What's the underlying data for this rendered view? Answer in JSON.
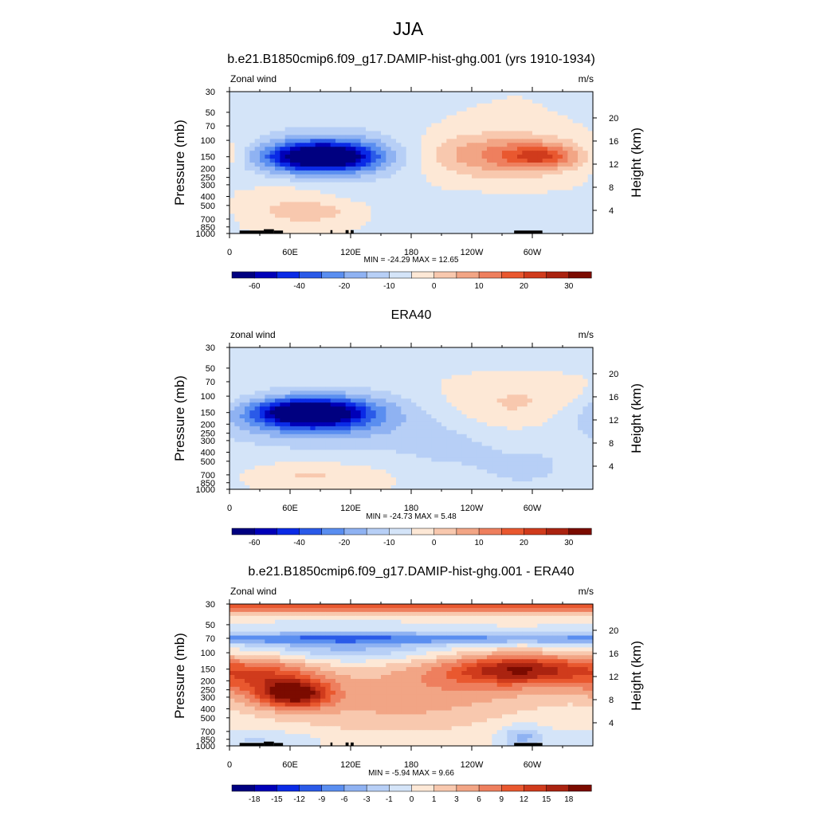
{
  "page": {
    "title": "JJA"
  },
  "colors": {
    "spread": [
      "#000080",
      "#0000b8",
      "#0a2ae6",
      "#2a5ae8",
      "#5a8ef0",
      "#8fb2f2",
      "#b7cff6",
      "#d4e4f8",
      "#fde8d6",
      "#f8c8ae",
      "#f2a585",
      "#ee7f5e",
      "#e9582f",
      "#d03b1c",
      "#aa2310",
      "#7b0b00"
    ],
    "land": "#000000"
  },
  "chart_data": [
    {
      "type": "heatmap",
      "title": "b.e21.B1850cmip6.f09_g17.DAMIP-hist-ghg.001 (yrs 1910-1934)",
      "left_label": "Zonal wind",
      "right_label": "m/s",
      "ylabel": "Pressure (mb)",
      "ylabel_right": "Height (km)",
      "pressure_ticks": [
        "30",
        "50",
        "70",
        "100",
        "150",
        "200",
        "250",
        "300",
        "400",
        "500",
        "700",
        "850",
        "1000"
      ],
      "height_ticks": [
        "20",
        "16",
        "12",
        "8",
        "4"
      ],
      "x_ticks": [
        "0",
        "60E",
        "120E",
        "180",
        "120W",
        "60W"
      ],
      "stats": "MIN = -24.29  MAX =  12.65",
      "colorbar_labels": [
        "-60",
        "-40",
        "-20",
        "-10",
        "0",
        "10",
        "20",
        "30"
      ],
      "xlim": [
        0,
        360
      ],
      "ylim_mb": [
        1000,
        30
      ],
      "min": -24.29,
      "max": 12.65,
      "field": [
        {
          "lon": 90,
          "p": 150,
          "value": -24,
          "sx": 35,
          "sy": 0.22
        },
        {
          "lon": 90,
          "p": 150,
          "value": -14,
          "sx": 55,
          "sy": 0.35
        },
        {
          "lon": 105,
          "p": 140,
          "value": -6,
          "sx": 80,
          "sy": 0.55
        },
        {
          "lon": 310,
          "p": 150,
          "value": 12.6,
          "sx": 25,
          "sy": 0.2
        },
        {
          "lon": 280,
          "p": 140,
          "value": 9,
          "sx": 70,
          "sy": 0.35
        },
        {
          "lon": 250,
          "p": 150,
          "value": 5,
          "sx": 60,
          "sy": 0.45
        },
        {
          "lon": 80,
          "p": 600,
          "value": 6,
          "sx": 35,
          "sy": 0.2
        },
        {
          "lon": 60,
          "p": 400,
          "value": 3,
          "sx": 30,
          "sy": 0.35
        },
        {
          "lon": 240,
          "p": 600,
          "value": -3,
          "sx": 70,
          "sy": 0.3
        },
        {
          "lon": 20,
          "p": 150,
          "value": 1.5,
          "sx": 30,
          "sy": 0.4
        }
      ],
      "land": [
        [
          10,
          30,
          930
        ],
        [
          30,
          34,
          930
        ],
        [
          34,
          44,
          900
        ],
        [
          44,
          53,
          930
        ],
        [
          100,
          102,
          920
        ],
        [
          115,
          118,
          920
        ],
        [
          120,
          123,
          920
        ],
        [
          282,
          310,
          930
        ]
      ]
    },
    {
      "type": "heatmap",
      "title": "ERA40",
      "left_label": "zonal wind",
      "right_label": "m/s",
      "ylabel": "Pressure (mb)",
      "ylabel_right": "Height (km)",
      "pressure_ticks": [
        "30",
        "50",
        "70",
        "100",
        "150",
        "200",
        "250",
        "300",
        "400",
        "500",
        "700",
        "850",
        "1000"
      ],
      "height_ticks": [
        "20",
        "16",
        "12",
        "8",
        "4"
      ],
      "x_ticks": [
        "0",
        "60E",
        "120E",
        "180",
        "120W",
        "60W"
      ],
      "stats": "MIN = -24.73  MAX =   5.48",
      "colorbar_labels": [
        "-60",
        "-40",
        "-20",
        "-10",
        "0",
        "10",
        "20",
        "30"
      ],
      "xlim": [
        0,
        360
      ],
      "ylim_mb": [
        1000,
        30
      ],
      "min": -24.73,
      "max": 5.48,
      "field": [
        {
          "lon": 80,
          "p": 150,
          "value": -24,
          "sx": 35,
          "sy": 0.22
        },
        {
          "lon": 80,
          "p": 160,
          "value": -14,
          "sx": 55,
          "sy": 0.35
        },
        {
          "lon": 100,
          "p": 180,
          "value": -7,
          "sx": 85,
          "sy": 0.6
        },
        {
          "lon": 180,
          "p": 35,
          "value": -4,
          "sx": 400,
          "sy": 0.22
        },
        {
          "lon": 210,
          "p": 350,
          "value": -4,
          "sx": 35,
          "sy": 0.35
        },
        {
          "lon": 290,
          "p": 600,
          "value": -5,
          "sx": 45,
          "sy": 0.45
        },
        {
          "lon": 290,
          "p": 120,
          "value": 5.4,
          "sx": 60,
          "sy": 0.4
        },
        {
          "lon": 80,
          "p": 700,
          "value": 5,
          "sx": 40,
          "sy": 0.2
        }
      ],
      "land": []
    },
    {
      "type": "heatmap",
      "title": "b.e21.B1850cmip6.f09_g17.DAMIP-hist-ghg.001 - ERA40",
      "left_label": "Zonal wind",
      "right_label": "m/s",
      "ylabel": "Pressure (mb)",
      "ylabel_right": "Height (km)",
      "pressure_ticks": [
        "30",
        "50",
        "70",
        "100",
        "150",
        "200",
        "250",
        "300",
        "400",
        "500",
        "700",
        "850",
        "1000"
      ],
      "height_ticks": [
        "20",
        "16",
        "12",
        "8",
        "4"
      ],
      "x_ticks": [
        "0",
        "60E",
        "120E",
        "180",
        "120W",
        "60W"
      ],
      "stats": "MIN =  -5.94  MAX =   9.66",
      "colorbar_labels": [
        "-18",
        "-15",
        "-12",
        "-9",
        "-6",
        "-3",
        "-1",
        "0",
        "1",
        "3",
        "6",
        "9",
        "12",
        "15",
        "18"
      ],
      "xlim": [
        0,
        360
      ],
      "ylim_mb": [
        1000,
        30
      ],
      "min": -5.94,
      "max": 9.66,
      "field": [
        {
          "lon": 180,
          "p": 32,
          "value": 8,
          "sx": 500,
          "sy": 0.12
        },
        {
          "lon": 180,
          "p": 70,
          "value": -5,
          "sx": 500,
          "sy": 0.1
        },
        {
          "lon": 110,
          "p": 90,
          "value": -4,
          "sx": 80,
          "sy": 0.25
        },
        {
          "lon": 65,
          "p": 280,
          "value": 9.5,
          "sx": 25,
          "sy": 0.25
        },
        {
          "lon": 40,
          "p": 180,
          "value": 6,
          "sx": 40,
          "sy": 0.4
        },
        {
          "lon": 290,
          "p": 150,
          "value": 8,
          "sx": 50,
          "sy": 0.25
        },
        {
          "lon": 250,
          "p": 180,
          "value": 4,
          "sx": 90,
          "sy": 0.45
        },
        {
          "lon": 160,
          "p": 400,
          "value": 3,
          "sx": 90,
          "sy": 0.5
        },
        {
          "lon": 290,
          "p": 800,
          "value": -4,
          "sx": 15,
          "sy": 0.2
        },
        {
          "lon": 30,
          "p": 850,
          "value": -2,
          "sx": 40,
          "sy": 0.15
        }
      ],
      "land": [
        [
          10,
          30,
          930
        ],
        [
          30,
          34,
          930
        ],
        [
          34,
          44,
          900
        ],
        [
          44,
          53,
          930
        ],
        [
          100,
          102,
          920
        ],
        [
          115,
          118,
          920
        ],
        [
          120,
          123,
          920
        ],
        [
          282,
          310,
          930
        ]
      ]
    }
  ]
}
